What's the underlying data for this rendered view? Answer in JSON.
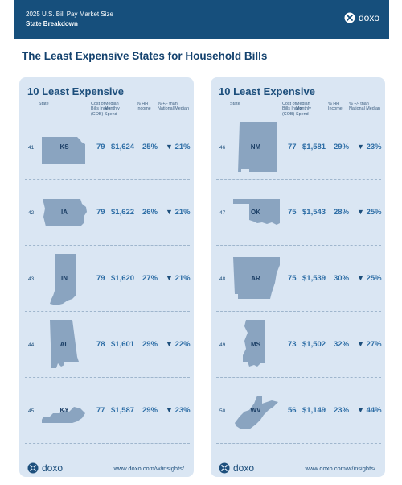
{
  "header": {
    "supertitle": "2025 U.S. Bill Pay Market Size",
    "subtitle": "State Breakdown",
    "brand": "doxo"
  },
  "page_title": "The Least Expensive States for Household Bills",
  "columns": {
    "state": "State",
    "cob": "Cost of Bills Index (COB)",
    "spend": "Median Monthly Spend",
    "income": "% HH Income",
    "national": "% +/- than National Median"
  },
  "panels": [
    {
      "title": "10 Least Expensive",
      "rows": [
        {
          "rank": "41",
          "state": "KS",
          "cob": "79",
          "spend": "$1,624",
          "income": "25%",
          "arrow": "▼",
          "pct": "21%"
        },
        {
          "rank": "42",
          "state": "IA",
          "cob": "79",
          "spend": "$1,622",
          "income": "26%",
          "arrow": "▼",
          "pct": "21%"
        },
        {
          "rank": "43",
          "state": "IN",
          "cob": "79",
          "spend": "$1,620",
          "income": "27%",
          "arrow": "▼",
          "pct": "21%"
        },
        {
          "rank": "44",
          "state": "AL",
          "cob": "78",
          "spend": "$1,601",
          "income": "29%",
          "arrow": "▼",
          "pct": "22%"
        },
        {
          "rank": "45",
          "state": "KY",
          "cob": "77",
          "spend": "$1,587",
          "income": "29%",
          "arrow": "▼",
          "pct": "23%"
        }
      ],
      "footer": {
        "brand": "doxo",
        "url": "www.doxo.com/w/insights/"
      }
    },
    {
      "title": "10 Least Expensive",
      "rows": [
        {
          "rank": "46",
          "state": "NM",
          "cob": "77",
          "spend": "$1,581",
          "income": "29%",
          "arrow": "▼",
          "pct": "23%"
        },
        {
          "rank": "47",
          "state": "OK",
          "cob": "75",
          "spend": "$1,543",
          "income": "28%",
          "arrow": "▼",
          "pct": "25%"
        },
        {
          "rank": "48",
          "state": "AR",
          "cob": "75",
          "spend": "$1,539",
          "income": "30%",
          "arrow": "▼",
          "pct": "25%"
        },
        {
          "rank": "49",
          "state": "MS",
          "cob": "73",
          "spend": "$1,502",
          "income": "32%",
          "arrow": "▼",
          "pct": "27%"
        },
        {
          "rank": "50",
          "state": "WV",
          "cob": "56",
          "spend": "$1,149",
          "income": "23%",
          "arrow": "▼",
          "pct": "44%"
        }
      ],
      "footer": {
        "brand": "doxo",
        "url": "www.doxo.com/w/insights/"
      }
    }
  ]
}
